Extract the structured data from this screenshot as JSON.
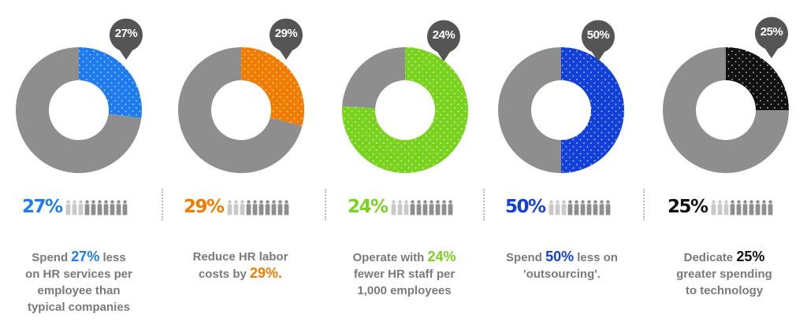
{
  "chart_data": [
    {
      "type": "pie",
      "variant": "donut",
      "values": [
        27,
        73
      ],
      "highlight_color": "#1E7BF0",
      "callout_label": "27%",
      "stat_label": "27%",
      "caption": [
        "Spend ",
        "27%",
        " less",
        "on HR services per",
        "employee than",
        "typical companies"
      ]
    },
    {
      "type": "pie",
      "variant": "donut",
      "values": [
        29,
        71
      ],
      "highlight_color": "#F07C00",
      "callout_label": "29%",
      "stat_label": "29%",
      "caption": [
        "Reduce HR labor",
        "costs by ",
        "29%."
      ]
    },
    {
      "type": "pie",
      "variant": "donut",
      "values": [
        76,
        24
      ],
      "highlight_color": "#79D21D",
      "callout_label": "24%",
      "stat_label": "24%",
      "caption": [
        "Operate with ",
        "24%",
        "fewer HR staff per",
        "1,000 employees"
      ]
    },
    {
      "type": "pie",
      "variant": "donut",
      "values": [
        50,
        50
      ],
      "highlight_color": "#1240D8",
      "callout_label": "50%",
      "stat_label": "50%",
      "caption": [
        "Spend ",
        "50%",
        " less on",
        "'outsourcing'."
      ]
    },
    {
      "type": "pie",
      "variant": "donut",
      "values": [
        25,
        75
      ],
      "highlight_color": "#111111",
      "callout_label": "25%",
      "stat_label": "25%",
      "caption": [
        "Dedicate ",
        "25%",
        "greater spending",
        "to technology"
      ]
    }
  ],
  "colors": {
    "base_ring": "#8E8E8E",
    "callout": "#555555",
    "people_icon": "#8E8E8E",
    "caption_text": "#7A7A7A",
    "divider": "#B9B9B9"
  }
}
